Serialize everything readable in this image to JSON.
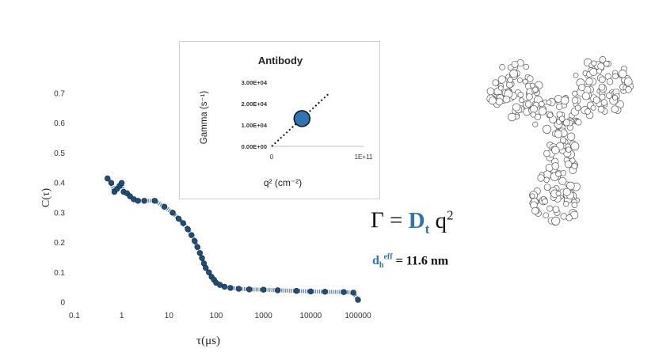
{
  "chart_data": [
    {
      "type": "scatter",
      "xscale": "log",
      "xlabel": "τ(μs)",
      "ylabel": "C(τ)",
      "xlim": [
        0.1,
        100000
      ],
      "ylim": [
        0,
        0.7
      ],
      "xticks": [
        "0.1",
        "1",
        "10",
        "100",
        "1000",
        "10000",
        "100000"
      ],
      "yticks": [
        "0",
        "0.1",
        "0.2",
        "0.3",
        "0.4",
        "0.5",
        "0.6",
        "0.7"
      ],
      "marker_color": "#1f4e79",
      "series": [
        {
          "x": [
            0.5,
            0.6,
            0.7,
            0.8,
            0.9,
            1.0,
            1.1,
            1.3,
            1.5,
            1.8,
            2.2,
            3.0,
            5.0,
            8,
            12,
            16,
            20,
            25,
            30,
            35,
            40,
            45,
            50,
            55,
            60,
            70,
            80,
            90,
            100,
            120,
            150,
            200,
            300,
            500,
            1000,
            2000,
            5000,
            10000,
            20000,
            50000,
            80000,
            100000
          ],
          "y": [
            0.415,
            0.4,
            0.37,
            0.38,
            0.39,
            0.4,
            0.37,
            0.365,
            0.355,
            0.345,
            0.34,
            0.34,
            0.34,
            0.32,
            0.3,
            0.28,
            0.265,
            0.245,
            0.225,
            0.205,
            0.185,
            0.165,
            0.148,
            0.13,
            0.115,
            0.1,
            0.085,
            0.075,
            0.065,
            0.058,
            0.052,
            0.048,
            0.045,
            0.043,
            0.042,
            0.04,
            0.038,
            0.036,
            0.035,
            0.034,
            0.032,
            0.008
          ]
        }
      ]
    },
    {
      "type": "scatter",
      "title": "Antibody",
      "xlabel": "q² (cm⁻²)",
      "ylabel": "Gamma (s⁻¹)",
      "xlim": [
        0,
        100000000000
      ],
      "ylim": [
        0,
        30000
      ],
      "xticks": [
        "0",
        "1E+11"
      ],
      "yticks": [
        "0.00E+00",
        "1.00E+04",
        "2.00E+04",
        "3.00E+04"
      ],
      "point": {
        "x": 33000000000,
        "y": 13000
      },
      "fit_line": {
        "x": [
          0,
          63000000000
        ],
        "y": [
          0,
          25000
        ]
      },
      "marker_color": "#2e75b6"
    }
  ],
  "equations": {
    "gamma_symbol": "Γ",
    "equals": "=",
    "d_letter": "D",
    "t_sub": "t",
    "q_letter": "q",
    "q_power": "2",
    "dh_letter": "d",
    "h_sub": "h",
    "eff_sup": "eff",
    "dh_value": "= 11.6 nm"
  },
  "illustration": {
    "icon": "antibody-molecule-icon"
  }
}
